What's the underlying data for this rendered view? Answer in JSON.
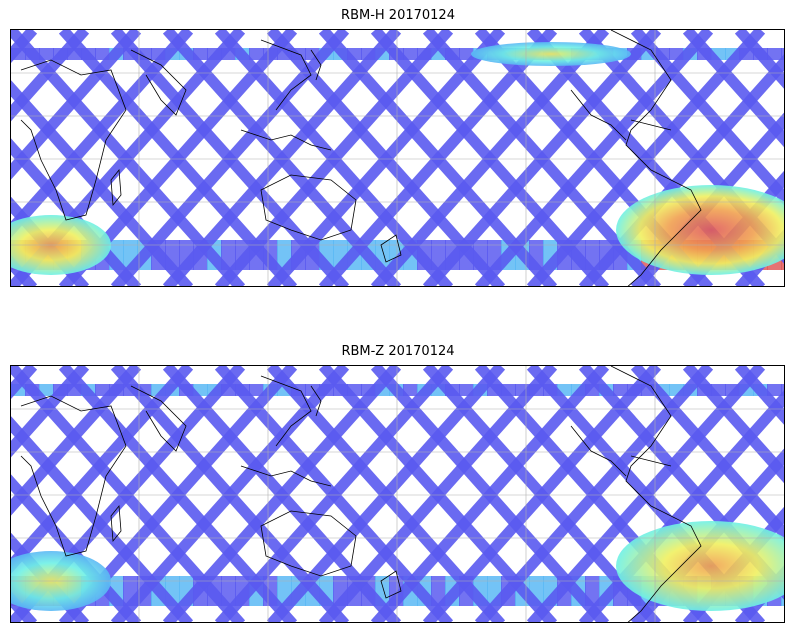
{
  "panels": [
    {
      "title": "RBM-H 20170124",
      "hotspots": [
        {
          "region": "south-atlantic-south-america",
          "level": 0.85
        },
        {
          "region": "southern-ocean-indian",
          "level": 0.7
        },
        {
          "region": "north-pacific-band",
          "level": 0.4
        }
      ]
    },
    {
      "title": "RBM-Z 20170124",
      "hotspots": [
        {
          "region": "south-atlantic-south-america",
          "level": 0.6
        },
        {
          "region": "southern-ocean-indian",
          "level": 0.3
        }
      ]
    }
  ],
  "colors": {
    "track_low": "#5a5af0",
    "track_mid": "#5ab8f5",
    "track_cyan": "#6ef0e6",
    "track_yellow": "#f0f060",
    "track_orange": "#f0a050",
    "track_high": "#e05a5a",
    "coastline": "#000000",
    "gridline": "#b0b0b0"
  }
}
